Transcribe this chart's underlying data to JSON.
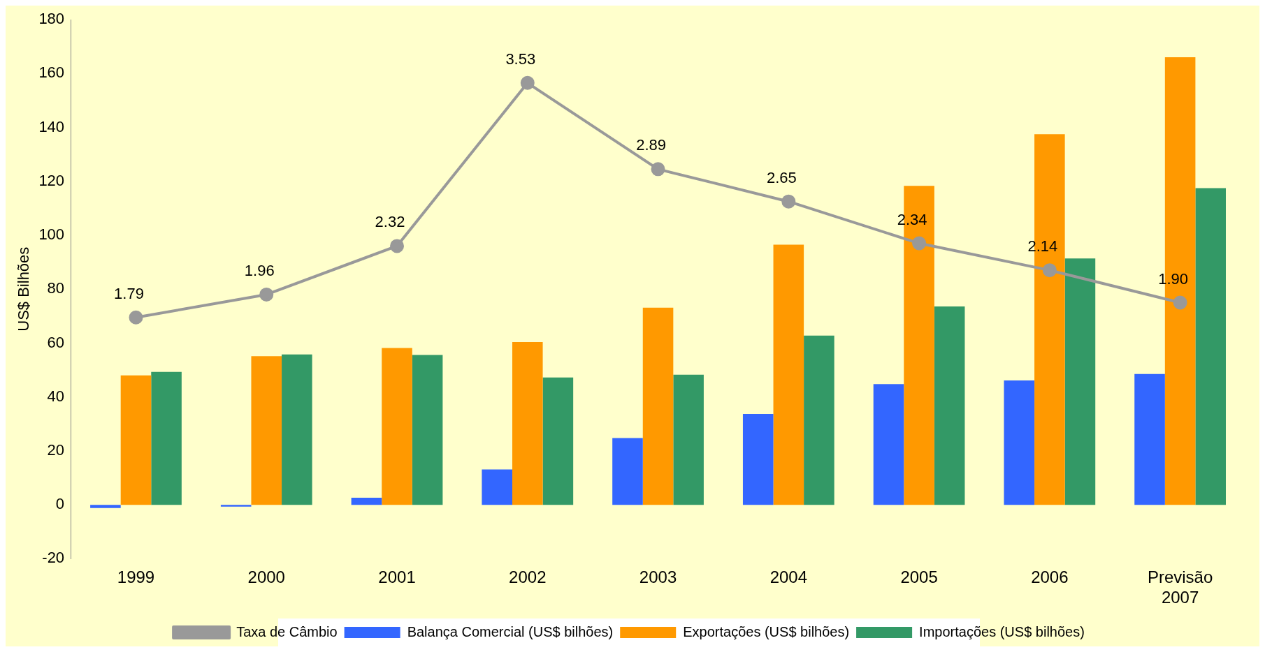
{
  "chart_data": {
    "type": "bar",
    "ylabel": "US$ Bilhões",
    "categories": [
      "1999",
      "2000",
      "2001",
      "2002",
      "2003",
      "2004",
      "2005",
      "2006",
      "Previsão 2007"
    ],
    "series": [
      {
        "name": "Balança Comercial (US$ bilhões)",
        "color": "#3366ff",
        "values": [
          -1.2,
          -0.7,
          2.6,
          13.1,
          24.8,
          33.7,
          44.8,
          46.1,
          48.5
        ]
      },
      {
        "name": "Exportações (US$ bilhões)",
        "color": "#ff9900",
        "values": [
          48,
          55.1,
          58.2,
          60.4,
          73.1,
          96.5,
          118.3,
          137.5,
          166
        ]
      },
      {
        "name": "Importações (US$ bilhões)",
        "color": "#339966",
        "values": [
          49.3,
          55.8,
          55.6,
          47.2,
          48.3,
          62.8,
          73.6,
          91.4,
          117.5
        ]
      },
      {
        "name": "Taxa de Câmbio",
        "type": "line",
        "axis": "y2",
        "color": "#999999",
        "marker": "circle",
        "values": [
          1.79,
          1.96,
          2.32,
          3.53,
          2.89,
          2.65,
          2.34,
          2.14,
          1.9
        ],
        "value_labels": [
          "1.79",
          "1.96",
          "2.32",
          "3.53",
          "2.89",
          "2.65",
          "2.34",
          "2.14",
          "1.90"
        ]
      }
    ],
    "ylim": [
      -20,
      180
    ],
    "yticks": [
      -20,
      0,
      20,
      40,
      60,
      80,
      100,
      120,
      140,
      160,
      180
    ],
    "y2lim": [
      0,
      4
    ],
    "grid": false,
    "legend": "bottom"
  }
}
